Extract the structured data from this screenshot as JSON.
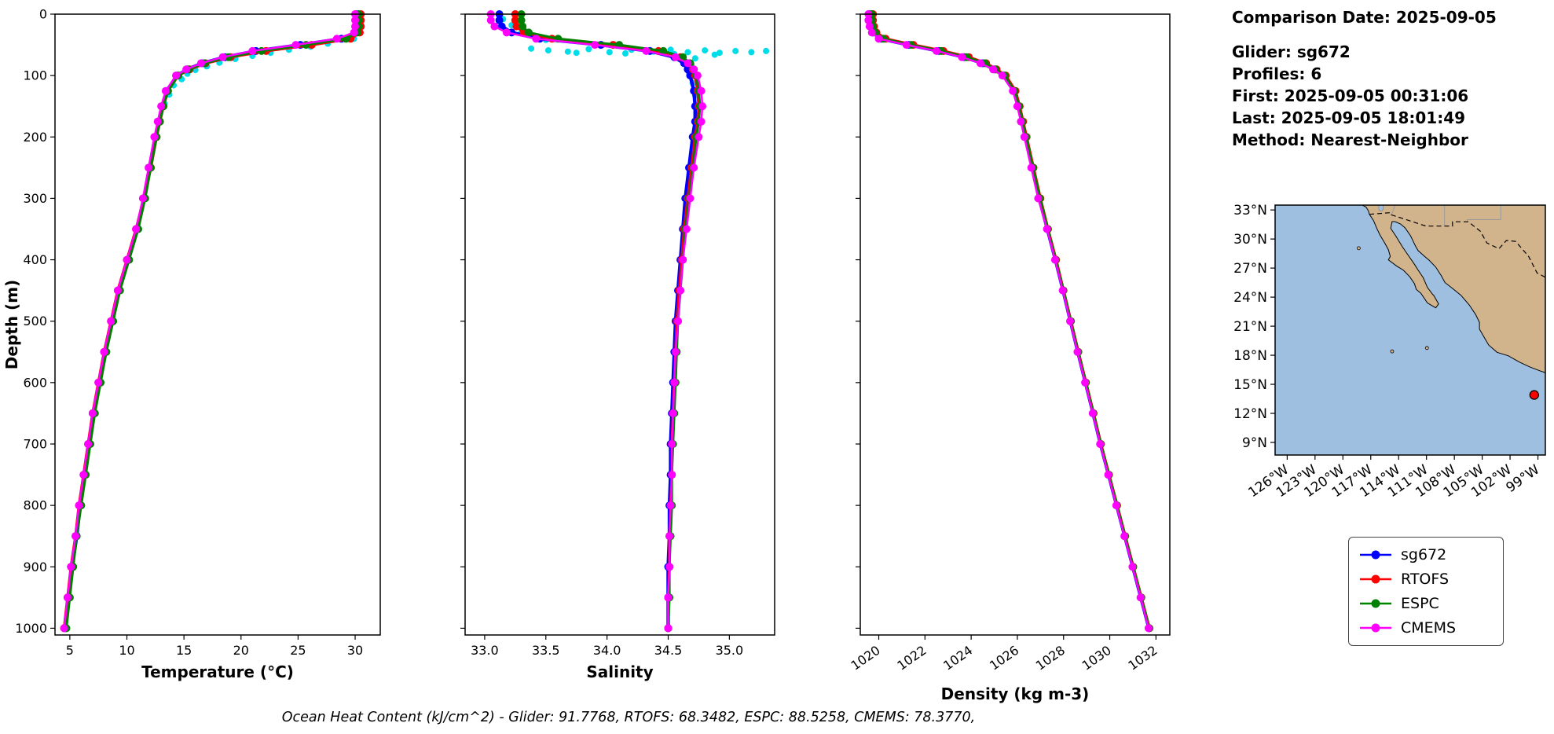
{
  "info": {
    "comparison_date": "Comparison Date: 2025-09-05",
    "glider": "Glider: sg672",
    "profiles": "Profiles: 6",
    "first": "First: 2025-09-05 00:31:06",
    "last": "Last: 2025-09-05 18:01:49",
    "method": "Method: Nearest-Neighbor"
  },
  "footer": {
    "ohc": "Ocean Heat Content (kJ/cm^2) - Glider: 91.7768,  RTOFS: 68.3482,  ESPC: 88.5258,  CMEMS: 78.3770,"
  },
  "legend": {
    "items": [
      {
        "label": "sg672",
        "color": "#0000ff"
      },
      {
        "label": "RTOFS",
        "color": "#ff0000"
      },
      {
        "label": "ESPC",
        "color": "#008000"
      },
      {
        "label": "CMEMS",
        "color": "#ff00ff"
      }
    ]
  },
  "map": {
    "ocean_color": "#9fbfe0",
    "land_color": "#d2b48c",
    "extent": {
      "lon_min": -127.3,
      "lon_max": -98.2,
      "lat_min": 7.7,
      "lat_max": 33.5
    },
    "lat_ticks": [
      9,
      12,
      15,
      18,
      21,
      24,
      27,
      30,
      33
    ],
    "lat_labels": [
      "9°N",
      "12°N",
      "15°N",
      "18°N",
      "21°N",
      "24°N",
      "27°N",
      "30°N",
      "33°N"
    ],
    "lon_ticks": [
      -126,
      -123,
      -120,
      -117,
      -114,
      -111,
      -108,
      -105,
      -102,
      -99
    ],
    "lon_labels": [
      "126°W",
      "123°W",
      "120°W",
      "117°W",
      "114°W",
      "111°W",
      "108°W",
      "105°W",
      "102°W",
      "99°W"
    ],
    "marker": {
      "lon": -99.4,
      "lat": 13.9,
      "color": "#ff0000"
    }
  },
  "chart_data": [
    {
      "type": "line",
      "name": "temperature-profile",
      "xlabel": "Temperature (°C)",
      "ylabel": "Depth (m)",
      "xlim": [
        3.7,
        32.2
      ],
      "ylim": [
        0,
        1011
      ],
      "xticks": [
        5,
        10,
        15,
        20,
        25,
        30
      ],
      "xtick_labels": [
        "5",
        "10",
        "15",
        "20",
        "25",
        "30"
      ],
      "xtick_rotation": 0,
      "yticks": [
        0,
        100,
        200,
        300,
        400,
        500,
        600,
        700,
        800,
        900,
        1000
      ],
      "ytick_labels": [
        "0",
        "100",
        "200",
        "300",
        "400",
        "500",
        "600",
        "700",
        "800",
        "900",
        "1000"
      ],
      "show_ytick_labels": true,
      "depths": [
        0,
        10,
        20,
        30,
        40,
        50,
        60,
        70,
        80,
        90,
        100,
        125,
        150,
        175,
        200,
        250,
        300,
        350,
        400,
        450,
        500,
        550,
        600,
        650,
        700,
        750,
        800,
        850,
        900,
        950,
        1000
      ],
      "series": [
        {
          "name": "sg672",
          "color": "#0000ff",
          "lw": 4.5,
          "values": [
            30.1,
            30.1,
            30.1,
            30.0,
            28.8,
            25.2,
            21.3,
            18.6,
            16.6,
            15.3,
            14.4,
            13.5,
            13.1,
            12.8,
            12.5,
            12.0,
            11.5,
            10.9,
            10.1,
            9.3,
            8.7,
            8.1,
            7.6,
            7.1,
            6.7,
            6.3,
            5.9,
            5.6,
            5.2,
            4.9,
            4.6
          ]
        },
        {
          "name": "RTOFS",
          "color": "#ff0000",
          "lw": 3.5,
          "values": [
            30.5,
            30.5,
            30.5,
            30.4,
            29.6,
            26.2,
            22.2,
            19.1,
            16.9,
            15.5,
            14.5,
            13.6,
            13.2,
            12.9,
            12.6,
            12.1,
            11.5,
            10.8,
            10.0,
            9.2,
            8.6,
            8.0,
            7.5,
            7.0,
            6.6,
            6.2,
            5.8,
            5.5,
            5.1,
            4.8,
            4.5
          ]
        },
        {
          "name": "ESPC",
          "color": "#008000",
          "lw": 3,
          "values": [
            30.3,
            30.3,
            30.3,
            30.2,
            29.2,
            25.7,
            21.8,
            18.9,
            16.8,
            15.4,
            14.5,
            13.6,
            13.2,
            12.9,
            12.6,
            12.1,
            11.6,
            11.0,
            10.2,
            9.4,
            8.8,
            8.2,
            7.7,
            7.2,
            6.8,
            6.4,
            6.0,
            5.6,
            5.3,
            5.0,
            4.7
          ]
        },
        {
          "name": "CMEMS",
          "color": "#ff00ff",
          "lw": 2.5,
          "values": [
            30.0,
            30.0,
            30.0,
            29.9,
            28.4,
            24.8,
            21.0,
            18.4,
            16.5,
            15.2,
            14.3,
            13.4,
            13.0,
            12.7,
            12.4,
            11.9,
            11.4,
            10.8,
            10.0,
            9.2,
            8.6,
            8.0,
            7.5,
            7.0,
            6.6,
            6.2,
            5.8,
            5.5,
            5.1,
            4.8,
            4.5
          ]
        }
      ],
      "scatter": {
        "name": "raw-glider",
        "color": "#00dce8",
        "points": [
          [
            30.2,
            5
          ],
          [
            30.2,
            22
          ],
          [
            29.9,
            40
          ],
          [
            27.6,
            48
          ],
          [
            26.1,
            53
          ],
          [
            24.2,
            58
          ],
          [
            22.6,
            63
          ],
          [
            21.0,
            68
          ],
          [
            19.5,
            73
          ],
          [
            18.1,
            79
          ],
          [
            17.0,
            85
          ],
          [
            16.0,
            91
          ],
          [
            15.3,
            97
          ],
          [
            14.8,
            106
          ],
          [
            14.1,
            116
          ],
          [
            13.7,
            131
          ],
          [
            13.3,
            146
          ]
        ]
      }
    },
    {
      "type": "line",
      "name": "salinity-profile",
      "xlabel": "Salinity",
      "ylabel": "",
      "xlim": [
        32.84,
        35.37
      ],
      "ylim": [
        0,
        1011
      ],
      "xticks": [
        33.0,
        33.5,
        34.0,
        34.5,
        35.0
      ],
      "xtick_labels": [
        "33.0",
        "33.5",
        "34.0",
        "34.5",
        "35.0"
      ],
      "xtick_rotation": 0,
      "yticks": [
        0,
        100,
        200,
        300,
        400,
        500,
        600,
        700,
        800,
        900,
        1000
      ],
      "ytick_labels": [
        "0",
        "100",
        "200",
        "300",
        "400",
        "500",
        "600",
        "700",
        "800",
        "900",
        "1000"
      ],
      "show_ytick_labels": false,
      "depths": [
        0,
        10,
        20,
        30,
        40,
        50,
        60,
        70,
        80,
        90,
        100,
        125,
        150,
        175,
        200,
        250,
        300,
        350,
        400,
        450,
        500,
        550,
        600,
        650,
        700,
        750,
        800,
        850,
        900,
        950,
        1000
      ],
      "series": [
        {
          "name": "sg672",
          "color": "#0000ff",
          "lw": 4.5,
          "values": [
            33.12,
            33.12,
            33.14,
            33.22,
            33.45,
            33.95,
            34.35,
            34.55,
            34.63,
            34.66,
            34.68,
            34.71,
            34.72,
            34.72,
            34.7,
            34.67,
            34.64,
            34.62,
            34.6,
            34.58,
            34.56,
            34.55,
            34.54,
            34.53,
            34.52,
            34.52,
            34.51,
            34.51,
            34.5,
            34.5,
            34.5
          ]
        },
        {
          "name": "RTOFS",
          "color": "#ff0000",
          "lw": 3.5,
          "values": [
            33.25,
            33.25,
            33.26,
            33.32,
            33.55,
            34.05,
            34.42,
            34.6,
            34.67,
            34.7,
            34.72,
            34.74,
            34.75,
            34.74,
            34.72,
            34.69,
            34.66,
            34.63,
            34.61,
            34.59,
            34.57,
            34.56,
            34.55,
            34.54,
            34.53,
            34.53,
            34.52,
            34.51,
            34.51,
            34.5,
            34.5
          ]
        },
        {
          "name": "ESPC",
          "color": "#008000",
          "lw": 3,
          "values": [
            33.3,
            33.3,
            33.31,
            33.36,
            33.6,
            34.1,
            34.46,
            34.62,
            34.68,
            34.71,
            34.73,
            34.75,
            34.76,
            34.75,
            34.73,
            34.7,
            34.67,
            34.64,
            34.62,
            34.6,
            34.58,
            34.57,
            34.56,
            34.55,
            34.54,
            34.53,
            34.53,
            34.52,
            34.51,
            34.51,
            34.5
          ]
        },
        {
          "name": "CMEMS",
          "color": "#ff00ff",
          "lw": 2.5,
          "values": [
            33.05,
            33.05,
            33.08,
            33.18,
            33.42,
            33.9,
            34.32,
            34.56,
            34.66,
            34.71,
            34.74,
            34.77,
            34.78,
            34.77,
            34.75,
            34.71,
            34.68,
            34.65,
            34.62,
            34.6,
            34.58,
            34.56,
            34.55,
            34.54,
            34.53,
            34.53,
            34.52,
            34.51,
            34.51,
            34.5,
            34.5
          ]
        }
      ],
      "scatter": {
        "name": "raw-glider",
        "color": "#00dce8",
        "points": [
          [
            33.15,
            8
          ],
          [
            33.22,
            18
          ],
          [
            33.3,
            30
          ],
          [
            33.5,
            42
          ],
          [
            33.38,
            56
          ],
          [
            33.52,
            59
          ],
          [
            33.68,
            61
          ],
          [
            33.85,
            57
          ],
          [
            34.02,
            62
          ],
          [
            34.2,
            58
          ],
          [
            34.38,
            61
          ],
          [
            34.52,
            58
          ],
          [
            34.66,
            62
          ],
          [
            34.8,
            59
          ],
          [
            34.92,
            63
          ],
          [
            35.05,
            60
          ],
          [
            35.18,
            62
          ],
          [
            35.3,
            60
          ],
          [
            34.88,
            66
          ],
          [
            34.55,
            65
          ],
          [
            34.15,
            64
          ],
          [
            33.75,
            63
          ],
          [
            34.72,
            72
          ],
          [
            34.69,
            82
          ],
          [
            34.67,
            96
          ],
          [
            34.7,
            112
          ],
          [
            34.72,
            132
          ]
        ]
      }
    },
    {
      "type": "line",
      "name": "density-profile",
      "xlabel": "Density (kg m-3)",
      "ylabel": "",
      "xlim": [
        1019.2,
        1032.6
      ],
      "ylim": [
        0,
        1011
      ],
      "xticks": [
        1020,
        1022,
        1024,
        1026,
        1028,
        1030,
        1032
      ],
      "xtick_labels": [
        "1020",
        "1022",
        "1024",
        "1026",
        "1028",
        "1030",
        "1032"
      ],
      "xtick_rotation": -35,
      "yticks": [
        0,
        100,
        200,
        300,
        400,
        500,
        600,
        700,
        800,
        900,
        1000
      ],
      "ytick_labels": [
        "0",
        "100",
        "200",
        "300",
        "400",
        "500",
        "600",
        "700",
        "800",
        "900",
        "1000"
      ],
      "show_ytick_labels": false,
      "depths": [
        0,
        10,
        20,
        30,
        40,
        50,
        60,
        70,
        80,
        90,
        100,
        125,
        150,
        175,
        200,
        250,
        300,
        350,
        400,
        450,
        500,
        550,
        600,
        650,
        700,
        750,
        800,
        850,
        900,
        950,
        1000
      ],
      "series": [
        {
          "name": "sg672",
          "color": "#0000ff",
          "lw": 4.5,
          "values": [
            1019.6,
            1019.6,
            1019.65,
            1019.75,
            1020.1,
            1021.3,
            1022.6,
            1023.7,
            1024.5,
            1025.0,
            1025.4,
            1025.85,
            1026.05,
            1026.2,
            1026.35,
            1026.65,
            1026.95,
            1027.3,
            1027.65,
            1027.98,
            1028.3,
            1028.62,
            1028.95,
            1029.28,
            1029.6,
            1029.95,
            1030.3,
            1030.65,
            1031.0,
            1031.35,
            1031.7
          ]
        },
        {
          "name": "RTOFS",
          "color": "#ff0000",
          "lw": 3.5,
          "values": [
            1019.75,
            1019.75,
            1019.8,
            1019.9,
            1020.3,
            1021.5,
            1022.8,
            1023.9,
            1024.65,
            1025.1,
            1025.5,
            1025.92,
            1026.1,
            1026.25,
            1026.4,
            1026.7,
            1027.0,
            1027.33,
            1027.68,
            1028.0,
            1028.32,
            1028.64,
            1028.97,
            1029.3,
            1029.62,
            1029.97,
            1030.32,
            1030.67,
            1031.02,
            1031.37,
            1031.72
          ]
        },
        {
          "name": "ESPC",
          "color": "#008000",
          "lw": 3,
          "values": [
            1019.7,
            1019.7,
            1019.75,
            1019.85,
            1020.2,
            1021.4,
            1022.7,
            1023.8,
            1024.6,
            1025.05,
            1025.45,
            1025.88,
            1026.08,
            1026.22,
            1026.38,
            1026.68,
            1026.98,
            1027.32,
            1027.66,
            1027.99,
            1028.31,
            1028.63,
            1028.96,
            1029.29,
            1029.61,
            1029.96,
            1030.31,
            1030.66,
            1031.01,
            1031.36,
            1031.71
          ]
        },
        {
          "name": "CMEMS",
          "color": "#ff00ff",
          "lw": 2.5,
          "values": [
            1019.55,
            1019.55,
            1019.6,
            1019.7,
            1020.0,
            1021.2,
            1022.5,
            1023.6,
            1024.4,
            1024.95,
            1025.35,
            1025.8,
            1026.0,
            1026.15,
            1026.3,
            1026.6,
            1026.9,
            1027.28,
            1027.63,
            1027.96,
            1028.28,
            1028.6,
            1028.93,
            1029.26,
            1029.58,
            1029.93,
            1030.28,
            1030.63,
            1030.98,
            1031.33,
            1031.68
          ]
        }
      ],
      "scatter": null
    }
  ]
}
